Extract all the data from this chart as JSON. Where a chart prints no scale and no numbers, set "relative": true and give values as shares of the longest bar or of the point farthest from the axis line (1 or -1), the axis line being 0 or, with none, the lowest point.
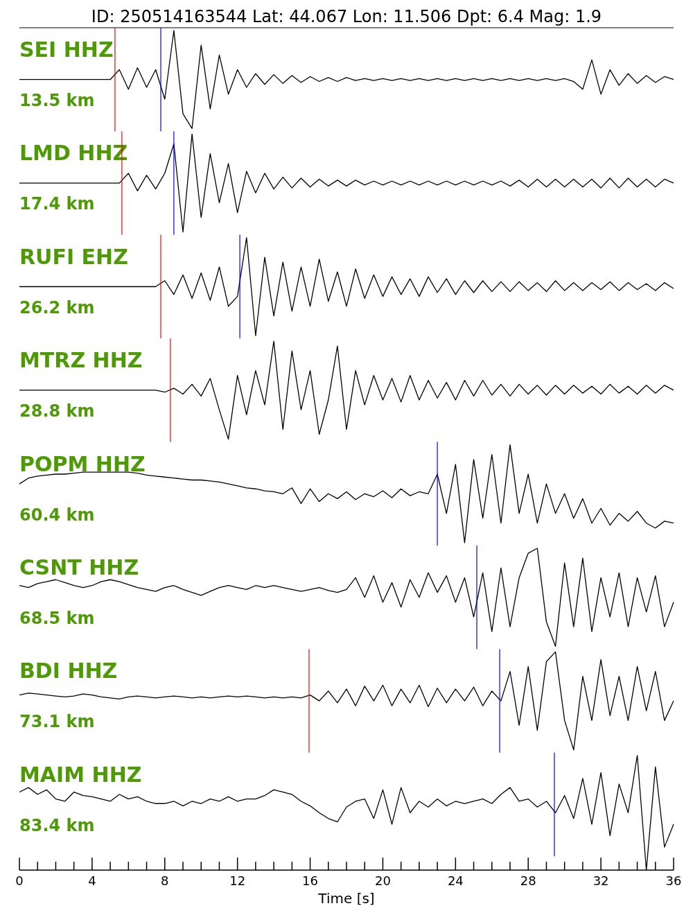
{
  "chart_data": [
    {
      "type": "line",
      "title": "ID: 250514163544 Lat:  44.067 Lon:  11.506 Dpt:     6.4 Mag:   1.9",
      "relative": true,
      "tick_labels": false,
      "xlim": [
        0,
        36
      ],
      "annotations": [
        "SEI HHZ",
        "13.5 km"
      ],
      "ref_lines": [
        {
          "axis": "x",
          "value": 5.26,
          "color": "#ff0000"
        },
        {
          "axis": "x",
          "value": 7.78,
          "color": "#0000ff"
        }
      ],
      "x": [
        0,
        0.5,
        1,
        1.5,
        2,
        2.5,
        3,
        3.5,
        4,
        4.5,
        5,
        5.5,
        6,
        6.5,
        7,
        7.5,
        8,
        8.5,
        9,
        9.5,
        10,
        10.5,
        11,
        11.5,
        12,
        12.5,
        13,
        13.5,
        14,
        14.5,
        15,
        15.5,
        16,
        16.5,
        17,
        17.5,
        18,
        18.5,
        19,
        19.5,
        20,
        20.5,
        21,
        21.5,
        22,
        22.5,
        23,
        23.5,
        24,
        24.5,
        25,
        25.5,
        26,
        26.5,
        27,
        27.5,
        28,
        28.5,
        29,
        29.5,
        30,
        30.5,
        31,
        31.5,
        32,
        32.5,
        33,
        33.5,
        34,
        34.5,
        35,
        35.5,
        36
      ],
      "series": [
        {
          "color": "#000000",
          "values": [
            0.5,
            0.5,
            0.5,
            0.5,
            0.5,
            0.5,
            0.5,
            0.5,
            0.5,
            0.5,
            0.5,
            0.6,
            0.4,
            0.62,
            0.42,
            0.6,
            0.3,
            1,
            0.15,
            0,
            0.85,
            0.2,
            0.75,
            0.35,
            0.6,
            0.42,
            0.56,
            0.45,
            0.55,
            0.46,
            0.54,
            0.47,
            0.53,
            0.48,
            0.52,
            0.48,
            0.52,
            0.49,
            0.51,
            0.49,
            0.51,
            0.49,
            0.51,
            0.49,
            0.51,
            0.49,
            0.51,
            0.49,
            0.51,
            0.49,
            0.51,
            0.49,
            0.51,
            0.49,
            0.51,
            0.49,
            0.51,
            0.49,
            0.51,
            0.49,
            0.51,
            0.48,
            0.4,
            0.7,
            0.35,
            0.6,
            0.44,
            0.56,
            0.46,
            0.54,
            0.47,
            0.53,
            0.5
          ]
        }
      ]
    },
    {
      "type": "line",
      "relative": true,
      "tick_labels": false,
      "xlim": [
        0,
        36
      ],
      "annotations": [
        "LMD HHZ",
        "17.4 km"
      ],
      "ref_lines": [
        {
          "axis": "x",
          "value": 5.64,
          "color": "#ff0000"
        },
        {
          "axis": "x",
          "value": 8.5,
          "color": "#0000ff"
        }
      ],
      "x": [
        0,
        0.5,
        1,
        1.5,
        2,
        2.5,
        3,
        3.5,
        4,
        4.5,
        5,
        5.5,
        6,
        6.5,
        7,
        7.5,
        8,
        8.5,
        9,
        9.5,
        10,
        10.5,
        11,
        11.5,
        12,
        12.5,
        13,
        13.5,
        14,
        14.5,
        15,
        15.5,
        16,
        16.5,
        17,
        17.5,
        18,
        18.5,
        19,
        19.5,
        20,
        20.5,
        21,
        21.5,
        22,
        22.5,
        23,
        23.5,
        24,
        24.5,
        25,
        25.5,
        26,
        26.5,
        27,
        27.5,
        28,
        28.5,
        29,
        29.5,
        30,
        30.5,
        31,
        31.5,
        32,
        32.5,
        33,
        33.5,
        34,
        34.5,
        35,
        35.5,
        36
      ],
      "series": [
        {
          "color": "#000000",
          "values": [
            0.5,
            0.5,
            0.5,
            0.5,
            0.5,
            0.5,
            0.5,
            0.5,
            0.5,
            0.5,
            0.5,
            0.5,
            0.6,
            0.42,
            0.58,
            0.44,
            0.6,
            0.9,
            0,
            1,
            0.15,
            0.8,
            0.3,
            0.7,
            0.2,
            0.62,
            0.4,
            0.6,
            0.44,
            0.56,
            0.45,
            0.55,
            0.46,
            0.54,
            0.47,
            0.53,
            0.47,
            0.53,
            0.48,
            0.52,
            0.48,
            0.52,
            0.48,
            0.52,
            0.48,
            0.52,
            0.48,
            0.52,
            0.48,
            0.52,
            0.48,
            0.52,
            0.48,
            0.52,
            0.47,
            0.53,
            0.46,
            0.54,
            0.46,
            0.54,
            0.46,
            0.54,
            0.46,
            0.54,
            0.45,
            0.55,
            0.45,
            0.55,
            0.46,
            0.54,
            0.46,
            0.54,
            0.5
          ]
        }
      ]
    },
    {
      "type": "line",
      "relative": true,
      "tick_labels": false,
      "xlim": [
        0,
        36
      ],
      "annotations": [
        "RUFI EHZ",
        "26.2 km"
      ],
      "ref_lines": [
        {
          "axis": "x",
          "value": 7.78,
          "color": "#ff0000"
        },
        {
          "axis": "x",
          "value": 12.13,
          "color": "#0000ff"
        }
      ],
      "x": [
        0,
        0.5,
        1,
        1.5,
        2,
        2.5,
        3,
        3.5,
        4,
        4.5,
        5,
        5.5,
        6,
        6.5,
        7,
        7.5,
        8,
        8.5,
        9,
        9.5,
        10,
        10.5,
        11,
        11.5,
        12,
        12.5,
        13,
        13.5,
        14,
        14.5,
        15,
        15.5,
        16,
        16.5,
        17,
        17.5,
        18,
        18.5,
        19,
        19.5,
        20,
        20.5,
        21,
        21.5,
        22,
        22.5,
        23,
        23.5,
        24,
        24.5,
        25,
        25.5,
        26,
        26.5,
        27,
        27.5,
        28,
        28.5,
        29,
        29.5,
        30,
        30.5,
        31,
        31.5,
        32,
        32.5,
        33,
        33.5,
        34,
        34.5,
        35,
        35.5,
        36
      ],
      "series": [
        {
          "color": "#000000",
          "values": [
            0.5,
            0.5,
            0.5,
            0.5,
            0.5,
            0.5,
            0.5,
            0.5,
            0.5,
            0.5,
            0.5,
            0.5,
            0.5,
            0.5,
            0.5,
            0.5,
            0.56,
            0.42,
            0.62,
            0.38,
            0.64,
            0.36,
            0.7,
            0.3,
            0.4,
            1,
            0,
            0.8,
            0.2,
            0.75,
            0.25,
            0.7,
            0.3,
            0.78,
            0.35,
            0.65,
            0.3,
            0.68,
            0.38,
            0.62,
            0.4,
            0.6,
            0.42,
            0.58,
            0.4,
            0.6,
            0.44,
            0.58,
            0.42,
            0.56,
            0.44,
            0.56,
            0.45,
            0.55,
            0.45,
            0.55,
            0.46,
            0.54,
            0.45,
            0.56,
            0.46,
            0.54,
            0.46,
            0.54,
            0.47,
            0.55,
            0.46,
            0.54,
            0.47,
            0.53,
            0.46,
            0.54,
            0.48
          ]
        }
      ]
    },
    {
      "type": "line",
      "relative": true,
      "tick_labels": false,
      "xlim": [
        0,
        36
      ],
      "annotations": [
        "MTRZ HHZ",
        "28.8 km"
      ],
      "ref_lines": [
        {
          "axis": "x",
          "value": 8.31,
          "color": "#ff0000"
        }
      ],
      "x": [
        0,
        0.5,
        1,
        1.5,
        2,
        2.5,
        3,
        3.5,
        4,
        4.5,
        5,
        5.5,
        6,
        6.5,
        7,
        7.5,
        8,
        8.5,
        9,
        9.5,
        10,
        10.5,
        11,
        11.5,
        12,
        12.5,
        13,
        13.5,
        14,
        14.5,
        15,
        15.5,
        16,
        16.5,
        17,
        17.5,
        18,
        18.5,
        19,
        19.5,
        20,
        20.5,
        21,
        21.5,
        22,
        22.5,
        23,
        23.5,
        24,
        24.5,
        25,
        25.5,
        26,
        26.5,
        27,
        27.5,
        28,
        28.5,
        29,
        29.5,
        30,
        30.5,
        31,
        31.5,
        32,
        32.5,
        33,
        33.5,
        34,
        34.5,
        35,
        35.5,
        36
      ],
      "series": [
        {
          "color": "#000000",
          "values": [
            0.5,
            0.5,
            0.5,
            0.5,
            0.5,
            0.5,
            0.5,
            0.5,
            0.5,
            0.5,
            0.5,
            0.5,
            0.5,
            0.5,
            0.5,
            0.5,
            0.48,
            0.52,
            0.46,
            0.56,
            0.44,
            0.62,
            0.3,
            0,
            0.65,
            0.25,
            0.7,
            0.35,
            1,
            0.1,
            0.9,
            0.3,
            0.7,
            0.05,
            0.4,
            0.95,
            0.1,
            0.7,
            0.35,
            0.65,
            0.4,
            0.62,
            0.38,
            0.65,
            0.4,
            0.6,
            0.42,
            0.58,
            0.4,
            0.6,
            0.44,
            0.6,
            0.45,
            0.56,
            0.44,
            0.56,
            0.46,
            0.55,
            0.45,
            0.55,
            0.46,
            0.55,
            0.47,
            0.54,
            0.46,
            0.56,
            0.47,
            0.54,
            0.46,
            0.55,
            0.47,
            0.55,
            0.5
          ]
        }
      ]
    },
    {
      "type": "line",
      "relative": true,
      "tick_labels": false,
      "xlim": [
        0,
        36
      ],
      "annotations": [
        "POPM HHZ",
        "60.4 km"
      ],
      "ref_lines": [
        {
          "axis": "x",
          "value": 23.0,
          "color": "#0000ff"
        }
      ],
      "x": [
        0,
        0.5,
        1,
        1.5,
        2,
        2.5,
        3,
        3.5,
        4,
        4.5,
        5,
        5.5,
        6,
        6.5,
        7,
        7.5,
        8,
        8.5,
        9,
        9.5,
        10,
        10.5,
        11,
        11.5,
        12,
        12.5,
        13,
        13.5,
        14,
        14.5,
        15,
        15.5,
        16,
        16.5,
        17,
        17.5,
        18,
        18.5,
        19,
        19.5,
        20,
        20.5,
        21,
        21.5,
        22,
        22.5,
        23,
        23.5,
        24,
        24.5,
        25,
        25.5,
        26,
        26.5,
        27,
        27.5,
        28,
        28.5,
        29,
        29.5,
        30,
        30.5,
        31,
        31.5,
        32,
        32.5,
        33,
        33.5,
        34,
        34.5,
        35,
        35.5,
        36
      ],
      "series": [
        {
          "color": "#000000",
          "values": [
            0.6,
            0.66,
            0.68,
            0.69,
            0.7,
            0.7,
            0.71,
            0.72,
            0.72,
            0.72,
            0.72,
            0.72,
            0.72,
            0.71,
            0.69,
            0.68,
            0.67,
            0.66,
            0.65,
            0.64,
            0.64,
            0.63,
            0.62,
            0.6,
            0.58,
            0.56,
            0.55,
            0.53,
            0.52,
            0.5,
            0.56,
            0.4,
            0.55,
            0.42,
            0.5,
            0.45,
            0.52,
            0.44,
            0.5,
            0.47,
            0.53,
            0.46,
            0.55,
            0.48,
            0.52,
            0.5,
            0.7,
            0.3,
            0.8,
            0,
            0.85,
            0.25,
            0.9,
            0.2,
            1,
            0.3,
            0.7,
            0.2,
            0.6,
            0.3,
            0.5,
            0.25,
            0.45,
            0.2,
            0.35,
            0.18,
            0.3,
            0.22,
            0.32,
            0.2,
            0.15,
            0.22,
            0.2
          ]
        }
      ]
    },
    {
      "type": "line",
      "relative": true,
      "tick_labels": false,
      "xlim": [
        0,
        36
      ],
      "annotations": [
        "CSNT HHZ",
        "68.5 km"
      ],
      "ref_lines": [
        {
          "axis": "x",
          "value": 25.17,
          "color": "#0000ff"
        }
      ],
      "x": [
        0,
        0.5,
        1,
        1.5,
        2,
        2.5,
        3,
        3.5,
        4,
        4.5,
        5,
        5.5,
        6,
        6.5,
        7,
        7.5,
        8,
        8.5,
        9,
        9.5,
        10,
        10.5,
        11,
        11.5,
        12,
        12.5,
        13,
        13.5,
        14,
        14.5,
        15,
        15.5,
        16,
        16.5,
        17,
        17.5,
        18,
        18.5,
        19,
        19.5,
        20,
        20.5,
        21,
        21.5,
        22,
        22.5,
        23,
        23.5,
        24,
        24.5,
        25,
        25.5,
        26,
        26.5,
        27,
        27.5,
        28,
        28.5,
        29,
        29.5,
        30,
        30.5,
        31,
        31.5,
        32,
        32.5,
        33,
        33.5,
        34,
        34.5,
        35,
        35.5,
        36
      ],
      "series": [
        {
          "color": "#000000",
          "values": [
            0.62,
            0.6,
            0.64,
            0.66,
            0.68,
            0.65,
            0.62,
            0.6,
            0.62,
            0.66,
            0.68,
            0.66,
            0.63,
            0.6,
            0.58,
            0.56,
            0.6,
            0.62,
            0.58,
            0.55,
            0.52,
            0.56,
            0.6,
            0.62,
            0.6,
            0.58,
            0.62,
            0.6,
            0.62,
            0.6,
            0.58,
            0.56,
            0.58,
            0.6,
            0.57,
            0.55,
            0.58,
            0.7,
            0.5,
            0.72,
            0.45,
            0.65,
            0.4,
            0.68,
            0.5,
            0.75,
            0.55,
            0.72,
            0.45,
            0.7,
            0.3,
            0.75,
            0.15,
            0.8,
            0.2,
            0.7,
            0.95,
            1,
            0.25,
            0,
            0.85,
            0.2,
            0.9,
            0.15,
            0.7,
            0.3,
            0.75,
            0.2,
            0.7,
            0.35,
            0.72,
            0.2,
            0.45
          ]
        }
      ]
    },
    {
      "type": "line",
      "relative": true,
      "tick_labels": false,
      "xlim": [
        0,
        36
      ],
      "annotations": [
        "BDI HHZ",
        "73.1 km"
      ],
      "ref_lines": [
        {
          "axis": "x",
          "value": 15.94,
          "color": "#ff0000"
        },
        {
          "axis": "x",
          "value": 26.43,
          "color": "#0000ff"
        }
      ],
      "x": [
        0,
        0.5,
        1,
        1.5,
        2,
        2.5,
        3,
        3.5,
        4,
        4.5,
        5,
        5.5,
        6,
        6.5,
        7,
        7.5,
        8,
        8.5,
        9,
        9.5,
        10,
        10.5,
        11,
        11.5,
        12,
        12.5,
        13,
        13.5,
        14,
        14.5,
        15,
        15.5,
        16,
        16.5,
        17,
        17.5,
        18,
        18.5,
        19,
        19.5,
        20,
        20.5,
        21,
        21.5,
        22,
        22.5,
        23,
        23.5,
        24,
        24.5,
        25,
        25.5,
        26,
        26.5,
        27,
        27.5,
        28,
        28.5,
        29,
        29.5,
        30,
        30.5,
        31,
        31.5,
        32,
        32.5,
        33,
        33.5,
        34,
        34.5,
        35,
        35.5,
        36
      ],
      "series": [
        {
          "color": "#000000",
          "values": [
            0.56,
            0.58,
            0.57,
            0.56,
            0.55,
            0.54,
            0.55,
            0.57,
            0.56,
            0.54,
            0.53,
            0.52,
            0.54,
            0.55,
            0.54,
            0.53,
            0.54,
            0.55,
            0.54,
            0.53,
            0.54,
            0.53,
            0.54,
            0.55,
            0.54,
            0.55,
            0.54,
            0.53,
            0.54,
            0.53,
            0.54,
            0.53,
            0.56,
            0.5,
            0.6,
            0.48,
            0.62,
            0.45,
            0.65,
            0.5,
            0.66,
            0.45,
            0.62,
            0.48,
            0.66,
            0.44,
            0.63,
            0.48,
            0.62,
            0.5,
            0.64,
            0.45,
            0.6,
            0.5,
            0.8,
            0.25,
            0.85,
            0.2,
            0.9,
            1,
            0.3,
            0,
            0.75,
            0.3,
            0.92,
            0.35,
            0.75,
            0.3,
            0.85,
            0.4,
            0.8,
            0.3,
            0.5
          ]
        }
      ]
    },
    {
      "type": "line",
      "relative": true,
      "tick_labels": "x",
      "xlim": [
        0,
        36
      ],
      "xlabel": "Time [s]",
      "annotations": [
        "MAIM HHZ",
        "83.4 km"
      ],
      "ref_lines": [
        {
          "axis": "x",
          "value": 29.44,
          "color": "#0000ff"
        }
      ],
      "xticks": [
        0,
        {
          "value": 1,
          "label": null
        },
        {
          "value": 2,
          "label": null
        },
        {
          "value": 3,
          "label": null
        },
        4,
        {
          "value": 5,
          "label": null
        },
        {
          "value": 6,
          "label": null
        },
        {
          "value": 7,
          "label": null
        },
        8,
        {
          "value": 9,
          "label": null
        },
        {
          "value": 10,
          "label": null
        },
        {
          "value": 11,
          "label": null
        },
        12,
        {
          "value": 13,
          "label": null
        },
        {
          "value": 14,
          "label": null
        },
        {
          "value": 15,
          "label": null
        },
        16,
        {
          "value": 17,
          "label": null
        },
        {
          "value": 18,
          "label": null
        },
        {
          "value": 19,
          "label": null
        },
        20,
        {
          "value": 21,
          "label": null
        },
        {
          "value": 22,
          "label": null
        },
        {
          "value": 23,
          "label": null
        },
        24,
        {
          "value": 25,
          "label": null
        },
        {
          "value": 26,
          "label": null
        },
        {
          "value": 27,
          "label": null
        },
        28,
        {
          "value": 29,
          "label": null
        },
        {
          "value": 30,
          "label": null
        },
        {
          "value": 31,
          "label": null
        },
        32,
        {
          "value": 33,
          "label": null
        },
        {
          "value": 34,
          "label": null
        },
        {
          "value": 35,
          "label": null
        },
        36
      ],
      "x": [
        0,
        0.5,
        1,
        1.5,
        2,
        2.5,
        3,
        3.5,
        4,
        4.5,
        5,
        5.5,
        6,
        6.5,
        7,
        7.5,
        8,
        8.5,
        9,
        9.5,
        10,
        10.5,
        11,
        11.5,
        12,
        12.5,
        13,
        13.5,
        14,
        14.5,
        15,
        15.5,
        16,
        16.5,
        17,
        17.5,
        18,
        18.5,
        19,
        19.5,
        20,
        20.5,
        21,
        21.5,
        22,
        22.5,
        23,
        23.5,
        24,
        24.5,
        25,
        25.5,
        26,
        26.5,
        27,
        27.5,
        28,
        28.5,
        29,
        29.5,
        30,
        30.5,
        31,
        31.5,
        32,
        32.5,
        33,
        33.5,
        34,
        34.5,
        35,
        35.5,
        36
      ],
      "series": [
        {
          "color": "#000000",
          "values": [
            0.68,
            0.72,
            0.66,
            0.7,
            0.62,
            0.6,
            0.68,
            0.65,
            0.64,
            0.62,
            0.6,
            0.66,
            0.62,
            0.64,
            0.6,
            0.58,
            0.58,
            0.6,
            0.56,
            0.6,
            0.58,
            0.62,
            0.6,
            0.64,
            0.6,
            0.62,
            0.62,
            0.65,
            0.7,
            0.68,
            0.66,
            0.6,
            0.56,
            0.5,
            0.45,
            0.42,
            0.55,
            0.6,
            0.62,
            0.45,
            0.7,
            0.4,
            0.72,
            0.5,
            0.6,
            0.55,
            0.62,
            0.56,
            0.6,
            0.58,
            0.6,
            0.62,
            0.58,
            0.66,
            0.72,
            0.6,
            0.62,
            0.55,
            0.6,
            0.5,
            0.65,
            0.45,
            0.8,
            0.4,
            0.85,
            0.3,
            0.75,
            0.5,
            1,
            0,
            0.9,
            0.2,
            0.4
          ]
        }
      ]
    }
  ]
}
